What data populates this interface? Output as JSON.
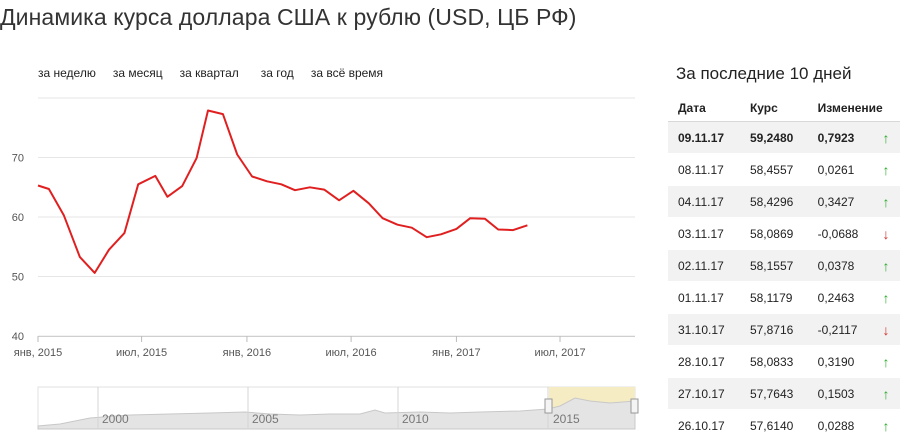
{
  "page": {
    "title": "Динамика курса доллара США к рублю (USD, ЦБ РФ)"
  },
  "periods": [
    "за неделю",
    "за месяц",
    "за квартал",
    "за год",
    "за всё время"
  ],
  "chart_data": {
    "type": "line",
    "title": "",
    "xlabel": "",
    "ylabel": "",
    "ylim": [
      40,
      80
    ],
    "yticks": [
      40,
      50,
      60,
      70
    ],
    "x_range": [
      "2015-01-01",
      "2017-11-09"
    ],
    "xticks": [
      {
        "date": "2015-01-01",
        "label": "янв, 2015"
      },
      {
        "date": "2015-07-01",
        "label": "июл, 2015"
      },
      {
        "date": "2016-01-01",
        "label": "янв, 2016"
      },
      {
        "date": "2016-07-01",
        "label": "июл, 2016"
      },
      {
        "date": "2017-01-01",
        "label": "янв, 2017"
      },
      {
        "date": "2017-07-01",
        "label": "июл, 2017"
      }
    ],
    "grid": true,
    "line_color": "#e02020",
    "series": [
      {
        "points": [
          [
            "2015-01-01",
            65.3
          ],
          [
            "2015-01-20",
            64.7
          ],
          [
            "2015-02-15",
            60.3
          ],
          [
            "2015-03-15",
            53.3
          ],
          [
            "2015-04-10",
            50.6
          ],
          [
            "2015-05-05",
            54.5
          ],
          [
            "2015-06-01",
            57.3
          ],
          [
            "2015-06-25",
            65.5
          ],
          [
            "2015-07-25",
            66.9
          ],
          [
            "2015-08-15",
            63.4
          ],
          [
            "2015-09-10",
            65.2
          ],
          [
            "2015-10-05",
            69.9
          ],
          [
            "2015-10-25",
            77.9
          ],
          [
            "2015-11-20",
            77.3
          ],
          [
            "2015-12-15",
            70.5
          ],
          [
            "2016-01-10",
            66.8
          ],
          [
            "2016-02-05",
            66.0
          ],
          [
            "2016-03-01",
            65.5
          ],
          [
            "2016-03-25",
            64.5
          ],
          [
            "2016-04-20",
            65.0
          ],
          [
            "2016-05-15",
            64.6
          ],
          [
            "2016-06-10",
            62.8
          ],
          [
            "2016-07-05",
            64.4
          ],
          [
            "2016-08-01",
            62.3
          ],
          [
            "2016-08-25",
            59.8
          ],
          [
            "2016-09-20",
            58.7
          ],
          [
            "2016-10-15",
            58.2
          ],
          [
            "2016-11-10",
            56.6
          ],
          [
            "2016-12-05",
            57.1
          ],
          [
            "2017-01-01",
            58.0
          ],
          [
            "2017-01-25",
            59.8
          ],
          [
            "2017-02-20",
            59.7
          ],
          [
            "2017-03-15",
            57.9
          ],
          [
            "2017-04-10",
            57.8
          ],
          [
            "2017-05-05",
            58.6
          ]
        ]
      }
    ]
  },
  "navigator": {
    "labels": [
      "2000",
      "2005",
      "2010",
      "2015"
    ],
    "selection_fill": "#f5ecc4"
  },
  "side_panel": {
    "title": "За последние 10 дней",
    "columns": [
      "Дата",
      "Курс",
      "Изменение"
    ],
    "rows": [
      {
        "date": "09.11.17",
        "rate": "59,2480",
        "change": "0,7923",
        "dir": "up"
      },
      {
        "date": "08.11.17",
        "rate": "58,4557",
        "change": "0,0261",
        "dir": "up"
      },
      {
        "date": "04.11.17",
        "rate": "58,4296",
        "change": "0,3427",
        "dir": "up"
      },
      {
        "date": "03.11.17",
        "rate": "58,0869",
        "change": "-0,0688",
        "dir": "down"
      },
      {
        "date": "02.11.17",
        "rate": "58,1557",
        "change": "0,0378",
        "dir": "up"
      },
      {
        "date": "01.11.17",
        "rate": "58,1179",
        "change": "0,2463",
        "dir": "up"
      },
      {
        "date": "31.10.17",
        "rate": "57,8716",
        "change": "-0,2117",
        "dir": "down"
      },
      {
        "date": "28.10.17",
        "rate": "58,0833",
        "change": "0,3190",
        "dir": "up"
      },
      {
        "date": "27.10.17",
        "rate": "57,7643",
        "change": "0,1503",
        "dir": "up"
      },
      {
        "date": "26.10.17",
        "rate": "57,6140",
        "change": "0,0288",
        "dir": "up"
      }
    ]
  }
}
